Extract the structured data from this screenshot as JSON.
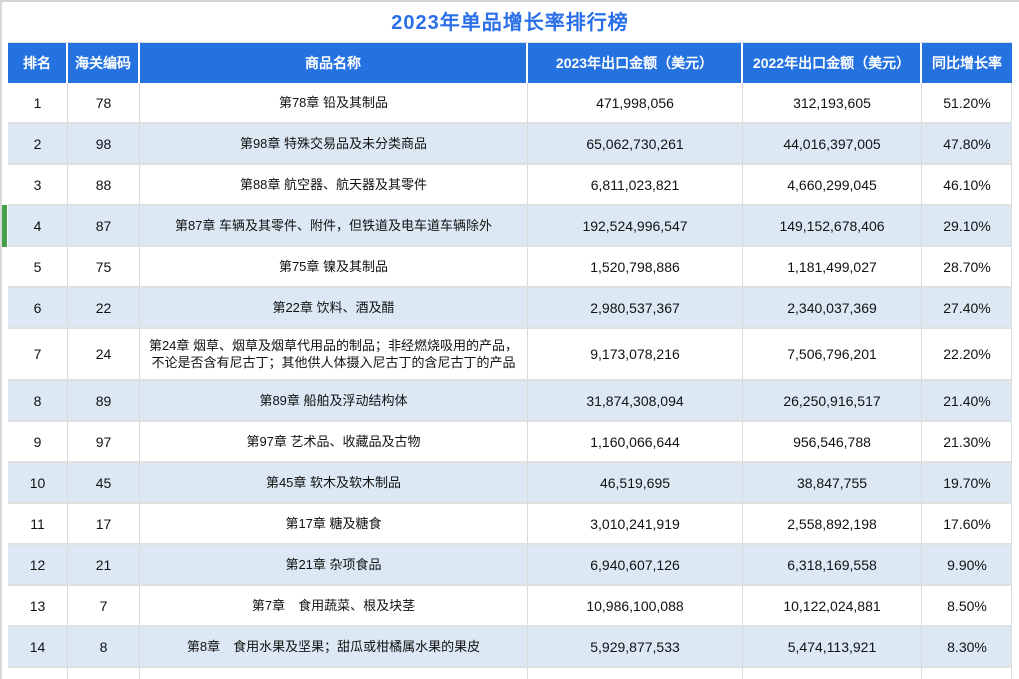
{
  "title": "2023年单品增长率排行榜",
  "colors": {
    "title_text": "#2b6fe8",
    "header_bg": "#2471e0",
    "header_text": "#ffffff",
    "alt_row_bg": "#dce9f5",
    "selected_marker": "#45a049"
  },
  "table": {
    "columns": [
      {
        "key": "rank",
        "label": "排名"
      },
      {
        "key": "code",
        "label": "海关编码"
      },
      {
        "key": "name",
        "label": "商品名称"
      },
      {
        "key": "amt2023",
        "label": "2023年出口金额（美元）"
      },
      {
        "key": "amt2022",
        "label": "2022年出口金额（美元）"
      },
      {
        "key": "growth",
        "label": "同比增长率"
      }
    ],
    "selected_row_rank": 4,
    "rows": [
      {
        "rank": "1",
        "code": "78",
        "name": "第78章 铅及其制品",
        "amt2023": "471,998,056",
        "amt2022": "312,193,605",
        "growth": "51.20%"
      },
      {
        "rank": "2",
        "code": "98",
        "name": "第98章 特殊交易品及未分类商品",
        "amt2023": "65,062,730,261",
        "amt2022": "44,016,397,005",
        "growth": "47.80%"
      },
      {
        "rank": "3",
        "code": "88",
        "name": "第88章 航空器、航天器及其零件",
        "amt2023": "6,811,023,821",
        "amt2022": "4,660,299,045",
        "growth": "46.10%"
      },
      {
        "rank": "4",
        "code": "87",
        "name": "第87章 车辆及其零件、附件，但铁道及电车道车辆除外",
        "amt2023": "192,524,996,547",
        "amt2022": "149,152,678,406",
        "growth": "29.10%"
      },
      {
        "rank": "5",
        "code": "75",
        "name": "第75章 镍及其制品",
        "amt2023": "1,520,798,886",
        "amt2022": "1,181,499,027",
        "growth": "28.70%"
      },
      {
        "rank": "6",
        "code": "22",
        "name": "第22章 饮料、酒及醋",
        "amt2023": "2,980,537,367",
        "amt2022": "2,340,037,369",
        "growth": "27.40%"
      },
      {
        "rank": "7",
        "code": "24",
        "name": "第24章 烟草、烟草及烟草代用品的制品；非经燃烧吸用的产品，不论是否含有尼古丁；其他供人体摄入尼古丁的含尼古丁的产品",
        "amt2023": "9,173,078,216",
        "amt2022": "7,506,796,201",
        "growth": "22.20%"
      },
      {
        "rank": "8",
        "code": "89",
        "name": "第89章 船舶及浮动结构体",
        "amt2023": "31,874,308,094",
        "amt2022": "26,250,916,517",
        "growth": "21.40%"
      },
      {
        "rank": "9",
        "code": "97",
        "name": "第97章 艺术品、收藏品及古物",
        "amt2023": "1,160,066,644",
        "amt2022": "956,546,788",
        "growth": "21.30%"
      },
      {
        "rank": "10",
        "code": "45",
        "name": "第45章 软木及软木制品",
        "amt2023": "46,519,695",
        "amt2022": "38,847,755",
        "growth": "19.70%"
      },
      {
        "rank": "11",
        "code": "17",
        "name": "第17章 糖及糖食",
        "amt2023": "3,010,241,919",
        "amt2022": "2,558,892,198",
        "growth": "17.60%"
      },
      {
        "rank": "12",
        "code": "21",
        "name": "第21章 杂项食品",
        "amt2023": "6,940,607,126",
        "amt2022": "6,318,169,558",
        "growth": "9.90%"
      },
      {
        "rank": "13",
        "code": "7",
        "name": "第7章　食用蔬菜、根及块茎",
        "amt2023": "10,986,100,088",
        "amt2022": "10,122,024,881",
        "growth": "8.50%"
      },
      {
        "rank": "14",
        "code": "8",
        "name": "第8章　食用水果及坚果；甜瓜或柑橘属水果的果皮",
        "amt2023": "5,929,877,533",
        "amt2022": "5,474,113,921",
        "growth": "8.30%"
      }
    ]
  }
}
